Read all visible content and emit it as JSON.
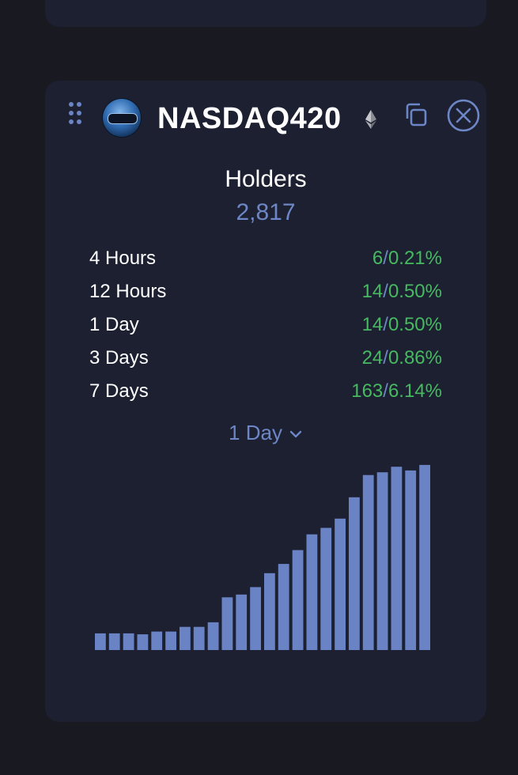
{
  "token": {
    "name": "NASDAQ420",
    "logo_icon": "nasdaq420-token-logo",
    "chain_icon": "ethereum-icon"
  },
  "holders": {
    "label": "Holders",
    "value": "2,817"
  },
  "stats": [
    {
      "label": "4 Hours",
      "count": "6",
      "separator": "/",
      "percent": "0.21%"
    },
    {
      "label": "12 Hours",
      "count": "14",
      "separator": "/",
      "percent": "0.50%"
    },
    {
      "label": "1 Day",
      "count": "14",
      "separator": "/",
      "percent": "0.50%"
    },
    {
      "label": "3 Days",
      "count": "24",
      "separator": "/",
      "percent": "0.86%"
    },
    {
      "label": "7 Days",
      "count": "163",
      "separator": "/",
      "percent": "6.14%"
    }
  ],
  "period_selector": {
    "selected": "1 Day"
  },
  "colors": {
    "background": "#191a21",
    "card": "#1c2031",
    "accent": "#6d86c6",
    "positive": "#47b960",
    "bar": "#6a83c5"
  },
  "chart_data": {
    "type": "bar",
    "series": [
      {
        "values": [
          2603,
          2603,
          2603,
          2602,
          2605,
          2605,
          2610,
          2610,
          2615,
          2642,
          2645,
          2653,
          2668,
          2678,
          2693,
          2710,
          2717,
          2727,
          2750,
          2774,
          2777,
          2783,
          2779,
          2785
        ]
      }
    ],
    "ylim": [
      2585,
      2790
    ]
  }
}
